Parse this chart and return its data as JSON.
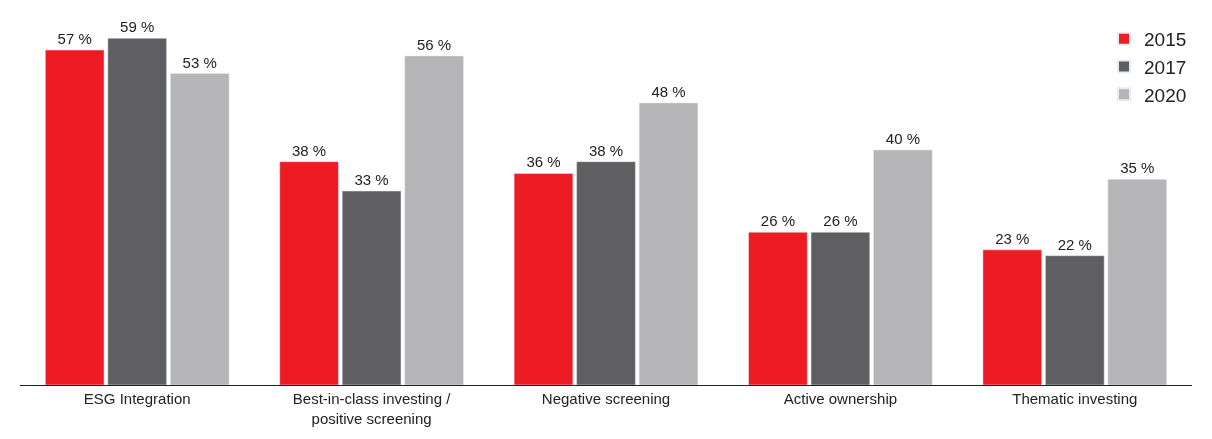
{
  "chart_data": {
    "type": "bar",
    "categories": [
      "ESG Integration",
      "Best-in-class investing / positive screening",
      "Negative screening",
      "Active ownership",
      "Thematic investing"
    ],
    "series": [
      {
        "name": "2015",
        "color": "#ed1c24",
        "values": [
          57,
          38,
          36,
          26,
          23
        ],
        "value_labels": [
          "57 %",
          "38 %",
          "36 %",
          "26 %",
          "23 %"
        ]
      },
      {
        "name": "2017",
        "color": "#5f5e60",
        "values": [
          59,
          33,
          38,
          26,
          22
        ],
        "value_labels": [
          "59 %",
          "33 %",
          "38 %",
          "26 %",
          "22 %"
        ]
      },
      {
        "name": "2020",
        "color": "#b5b5b8",
        "values": [
          53,
          56,
          48,
          40,
          35
        ],
        "value_labels": [
          "53 %",
          "56 %",
          "48 %",
          "40 %",
          "35 %"
        ]
      }
    ],
    "legend": "top right"
  }
}
